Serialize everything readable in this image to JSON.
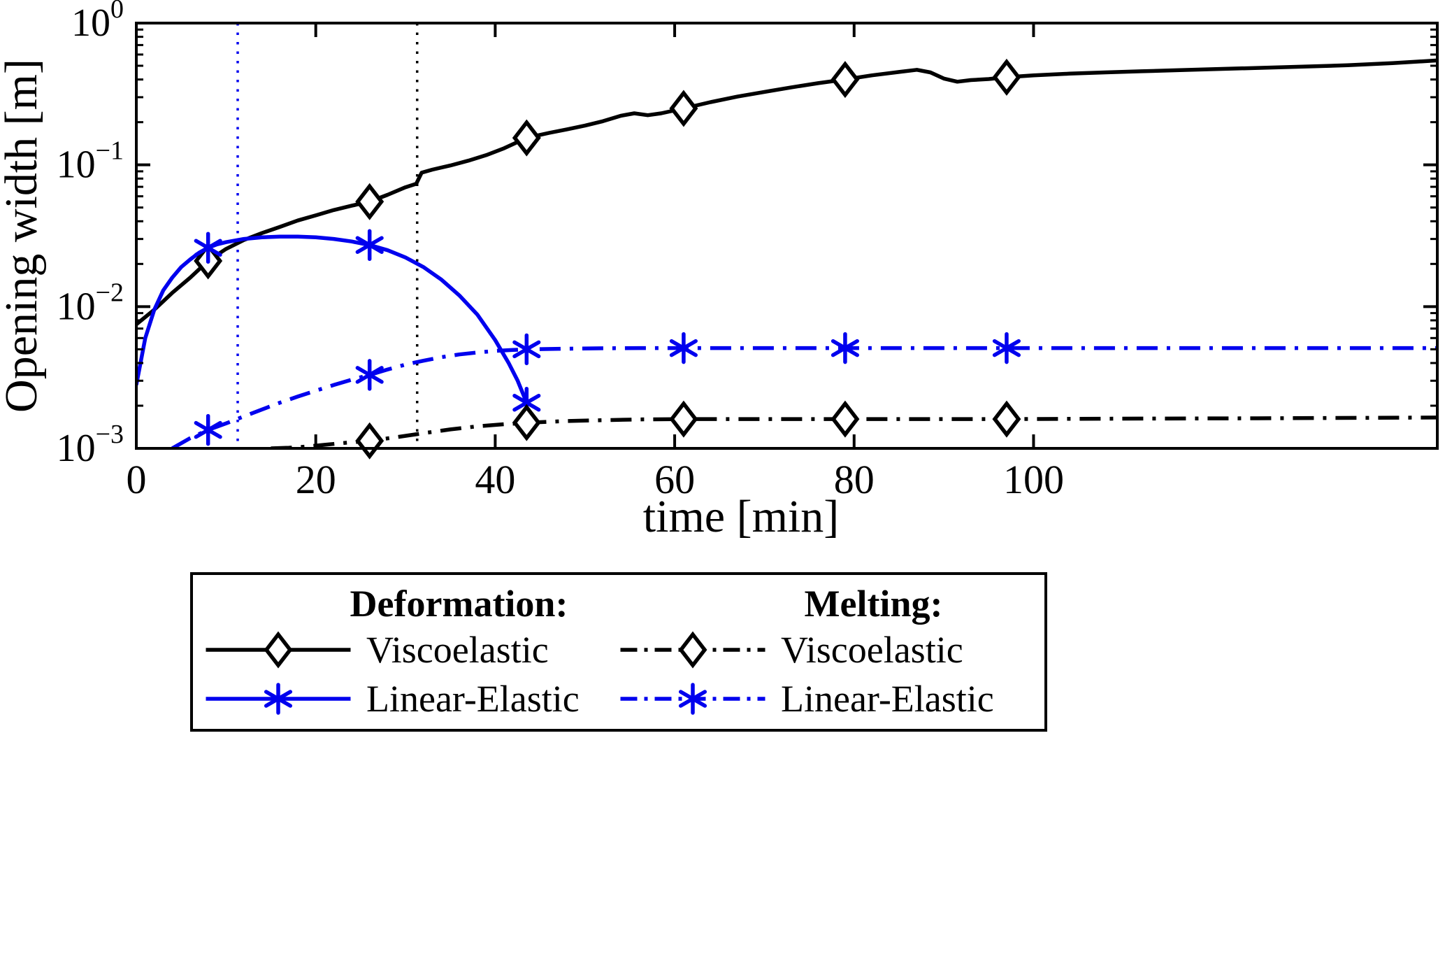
{
  "chart_data": {
    "type": "line",
    "title": "",
    "xlabel": "time [min]",
    "ylabel": "Opening width [m]",
    "xlim": [
      0,
      145
    ],
    "y_scale": "log",
    "ylog_exp_range": [
      -3,
      0
    ],
    "x_ticks": [
      0,
      20,
      40,
      60,
      80,
      100
    ],
    "y_tick_exponents": [
      0,
      -1,
      -2,
      -3
    ],
    "grid": false,
    "frame_color": "#000000",
    "vlines": [
      {
        "name": "vline-blue-dotted",
        "x": 11.3,
        "color": "#0000ee",
        "style": "dotted"
      },
      {
        "name": "vline-black-dotted",
        "x": 31.3,
        "color": "#000000",
        "style": "dotted"
      }
    ],
    "series": [
      {
        "name": "deformation-viscoelastic",
        "column": 0,
        "legend": "Viscoelastic",
        "color": "#000000",
        "line": "solid",
        "marker": "diamond",
        "points": [
          [
            0,
            0.0075
          ],
          [
            2,
            0.0095
          ],
          [
            4,
            0.0125
          ],
          [
            6,
            0.016
          ],
          [
            8,
            0.021
          ],
          [
            10,
            0.0255
          ],
          [
            12,
            0.0295
          ],
          [
            14,
            0.033
          ],
          [
            16,
            0.0365
          ],
          [
            18,
            0.0405
          ],
          [
            20,
            0.044
          ],
          [
            22,
            0.048
          ],
          [
            24,
            0.0515
          ],
          [
            26,
            0.055
          ],
          [
            28,
            0.0615
          ],
          [
            30,
            0.0695
          ],
          [
            31.2,
            0.0735
          ],
          [
            31.8,
            0.088
          ],
          [
            33,
            0.0925
          ],
          [
            35,
            0.099
          ],
          [
            37,
            0.107
          ],
          [
            39,
            0.117
          ],
          [
            41,
            0.131
          ],
          [
            43.5,
            0.155
          ],
          [
            46,
            0.168
          ],
          [
            48,
            0.178
          ],
          [
            50,
            0.189
          ],
          [
            52,
            0.203
          ],
          [
            54,
            0.222
          ],
          [
            55.5,
            0.231
          ],
          [
            57,
            0.224
          ],
          [
            58.5,
            0.231
          ],
          [
            61,
            0.25
          ],
          [
            64,
            0.277
          ],
          [
            67,
            0.303
          ],
          [
            70,
            0.327
          ],
          [
            73,
            0.352
          ],
          [
            76,
            0.377
          ],
          [
            79,
            0.4
          ],
          [
            82,
            0.428
          ],
          [
            85,
            0.452
          ],
          [
            87,
            0.468
          ],
          [
            88.5,
            0.449
          ],
          [
            90,
            0.406
          ],
          [
            91.5,
            0.386
          ],
          [
            93,
            0.396
          ],
          [
            95,
            0.403
          ],
          [
            97,
            0.415
          ],
          [
            100,
            0.428
          ],
          [
            104,
            0.44
          ],
          [
            108,
            0.449
          ],
          [
            112,
            0.457
          ],
          [
            116,
            0.465
          ],
          [
            120,
            0.473
          ],
          [
            125,
            0.483
          ],
          [
            130,
            0.493
          ],
          [
            135,
            0.504
          ],
          [
            140,
            0.522
          ],
          [
            145,
            0.545
          ]
        ],
        "markers": [
          [
            8,
            0.021
          ],
          [
            26,
            0.055
          ],
          [
            43.5,
            0.155
          ],
          [
            61,
            0.25
          ],
          [
            79,
            0.4
          ],
          [
            97,
            0.415
          ]
        ]
      },
      {
        "name": "deformation-linear-elastic",
        "column": 0,
        "legend": "Linear-Elastic",
        "color": "#0000ee",
        "line": "solid",
        "marker": "asterisk",
        "points": [
          [
            0,
            0.0028
          ],
          [
            1,
            0.006
          ],
          [
            2,
            0.0095
          ],
          [
            3,
            0.013
          ],
          [
            4,
            0.016
          ],
          [
            5,
            0.019
          ],
          [
            6,
            0.0215
          ],
          [
            7,
            0.024
          ],
          [
            8,
            0.026
          ],
          [
            9,
            0.0275
          ],
          [
            10,
            0.0285
          ],
          [
            12,
            0.03
          ],
          [
            14,
            0.0308
          ],
          [
            16,
            0.0312
          ],
          [
            18,
            0.0312
          ],
          [
            20,
            0.0308
          ],
          [
            22,
            0.03
          ],
          [
            24,
            0.0288
          ],
          [
            26,
            0.0272
          ],
          [
            28,
            0.025
          ],
          [
            30,
            0.0222
          ],
          [
            32,
            0.019
          ],
          [
            34,
            0.0155
          ],
          [
            36,
            0.012
          ],
          [
            38,
            0.0088
          ],
          [
            40,
            0.0058
          ],
          [
            41.5,
            0.004
          ],
          [
            42.5,
            0.003
          ],
          [
            43.5,
            0.0021
          ]
        ],
        "markers": [
          [
            8,
            0.026
          ],
          [
            26,
            0.0272
          ],
          [
            43.5,
            0.0021
          ]
        ]
      },
      {
        "name": "melting-viscoelastic",
        "column": 1,
        "legend": "Viscoelastic",
        "color": "#000000",
        "line": "dashdot",
        "marker": "diamond",
        "points": [
          [
            15,
            0.001
          ],
          [
            17,
            0.00101
          ],
          [
            19,
            0.00103
          ],
          [
            21,
            0.00106
          ],
          [
            23,
            0.00109
          ],
          [
            26,
            0.00113
          ],
          [
            29,
            0.0012
          ],
          [
            32,
            0.00128
          ],
          [
            35,
            0.00136
          ],
          [
            38,
            0.00143
          ],
          [
            41,
            0.00148
          ],
          [
            44,
            0.00152
          ],
          [
            48,
            0.00156
          ],
          [
            52,
            0.00158
          ],
          [
            56,
            0.0016
          ],
          [
            61,
            0.00161
          ],
          [
            70,
            0.00161
          ],
          [
            79,
            0.00161
          ],
          [
            88,
            0.00161
          ],
          [
            97,
            0.00161
          ],
          [
            110,
            0.00162
          ],
          [
            125,
            0.00163
          ],
          [
            145,
            0.00165
          ]
        ],
        "markers": [
          [
            26,
            0.00113
          ],
          [
            43.5,
            0.00152
          ],
          [
            61,
            0.00161
          ],
          [
            79,
            0.00161
          ],
          [
            97,
            0.00161
          ]
        ]
      },
      {
        "name": "melting-linear-elastic",
        "column": 1,
        "legend": "Linear-Elastic",
        "color": "#0000ee",
        "line": "dashdot",
        "marker": "asterisk",
        "points": [
          [
            4,
            0.001
          ],
          [
            6,
            0.00118
          ],
          [
            8,
            0.00135
          ],
          [
            10,
            0.0015
          ],
          [
            12,
            0.00168
          ],
          [
            14,
            0.00188
          ],
          [
            16,
            0.0021
          ],
          [
            18,
            0.00232
          ],
          [
            20,
            0.00255
          ],
          [
            22,
            0.0028
          ],
          [
            24,
            0.00305
          ],
          [
            26,
            0.0033
          ],
          [
            28,
            0.0036
          ],
          [
            30,
            0.0039
          ],
          [
            32,
            0.00415
          ],
          [
            34,
            0.0044
          ],
          [
            36,
            0.0046
          ],
          [
            38,
            0.00475
          ],
          [
            40,
            0.00487
          ],
          [
            42,
            0.00495
          ],
          [
            44,
            0.005
          ],
          [
            48,
            0.00505
          ],
          [
            52,
            0.00508
          ],
          [
            56,
            0.0051
          ],
          [
            61,
            0.0051
          ],
          [
            79,
            0.0051
          ],
          [
            97,
            0.0051
          ],
          [
            120,
            0.0051
          ],
          [
            145,
            0.0051
          ]
        ],
        "markers": [
          [
            8,
            0.00135
          ],
          [
            26,
            0.0033
          ],
          [
            43.5,
            0.005
          ],
          [
            61,
            0.0051
          ],
          [
            79,
            0.0051
          ],
          [
            97,
            0.0051
          ]
        ]
      }
    ],
    "legend": {
      "position": "below",
      "columns": [
        {
          "header": "Deformation:",
          "entries": [
            "Viscoelastic",
            "Linear-Elastic"
          ]
        },
        {
          "header": "Melting:",
          "entries": [
            "Viscoelastic",
            "Linear-Elastic"
          ]
        }
      ]
    }
  }
}
